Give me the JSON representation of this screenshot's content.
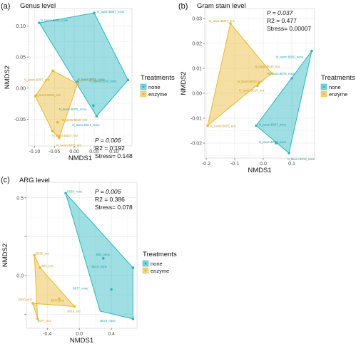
{
  "chart_data": [
    {
      "type": "scatter",
      "panel_label": "(a)",
      "title": "Genus level",
      "xlabel": "NMDS1",
      "ylabel": "NMDS2",
      "xlim": [
        -0.115,
        0.145
      ],
      "ylim": [
        -0.093,
        0.128
      ],
      "xticks": [
        -0.1,
        -0.05,
        0.0,
        0.05,
        0.1
      ],
      "xtick_labels": [
        "-0.10",
        "-0.05",
        "0.00",
        "0.05",
        "0.10"
      ],
      "yticks": [
        -0.05,
        0.0,
        0.05,
        0.1
      ],
      "ytick_labels": [
        "-0.05",
        "0.00",
        "0.05",
        "0.10"
      ],
      "grid": true,
      "legend_title": "Treatments",
      "legend_position": "right",
      "stats": {
        "p": "P = 0.006",
        "r2": "R2 = 0.192",
        "stress": "Stress= 0.148"
      },
      "series": [
        {
          "name": "none",
          "color": "#2BB5C2",
          "hull": [
            [
              -0.088,
              0.105
            ],
            [
              0.05,
              0.121
            ],
            [
              0.135,
              0.013
            ],
            [
              0.056,
              -0.045
            ]
          ],
          "points": [
            {
              "label": "N_taxon.B003_none",
              "x": -0.088,
              "y": 0.105
            },
            {
              "label": "N_taxon.B007_none",
              "x": 0.05,
              "y": 0.121
            },
            {
              "label": "N_taxon.B030_none",
              "x": 0.135,
              "y": 0.013
            },
            {
              "label": "N_taxon.B075_none",
              "x": 0.048,
              "y": -0.028
            },
            {
              "label": "N_taxon.B019_none",
              "x": 0.056,
              "y": -0.045
            },
            {
              "label": "N_taxon.B010_none",
              "x": 0.008,
              "y": 0.01
            }
          ]
        },
        {
          "name": "enzyme",
          "color": "#E8B830",
          "hull": [
            [
              -0.098,
              -0.013
            ],
            [
              -0.054,
              0.028
            ],
            [
              0.008,
              0.007
            ],
            [
              -0.038,
              -0.08
            ],
            [
              -0.055,
              -0.069
            ]
          ],
          "points": [
            {
              "label": "N_taxon.B003_enz",
              "x": -0.098,
              "y": -0.013
            },
            {
              "label": "N_taxon.B007_enz",
              "x": -0.054,
              "y": 0.028
            },
            {
              "label": "N_taxon.B030_enz",
              "x": 0.008,
              "y": 0.007
            },
            {
              "label": "N_taxon.B019_enz",
              "x": -0.042,
              "y": -0.055
            },
            {
              "label": "N_taxon.B010_enz",
              "x": -0.055,
              "y": -0.069
            },
            {
              "label": "N_taxon.B075_enz",
              "x": -0.038,
              "y": -0.08
            }
          ]
        }
      ],
      "legend": [
        {
          "name": "none"
        },
        {
          "name": "enzyme"
        }
      ]
    },
    {
      "type": "scatter",
      "panel_label": "(b)",
      "title": "Gram stain level",
      "xlabel": "NMDS1",
      "ylabel": "NMDS2",
      "xlim": [
        -0.205,
        0.18
      ],
      "ylim": [
        -0.026,
        0.034
      ],
      "xticks": [
        -0.2,
        -0.1,
        0.0,
        0.1
      ],
      "xtick_labels": [
        "-0.2",
        "-0.1",
        "0.0",
        "0.1"
      ],
      "yticks": [
        -0.02,
        -0.01,
        0.0,
        0.01,
        0.02,
        0.03
      ],
      "ytick_labels": [
        "-0.02",
        "-0.01",
        "0.00",
        "0.01",
        "0.02",
        "0.03"
      ],
      "grid": true,
      "legend_title": "Treatments",
      "legend_position": "right",
      "stats": {
        "p": "P = 0.037",
        "r2": "R2 = 0.477",
        "stress": "Stress= 0.00007"
      },
      "series": [
        {
          "name": "none",
          "color": "#2BB5C2",
          "hull": [
            [
              -0.025,
              -0.013
            ],
            [
              0.17,
              0.017
            ],
            [
              0.09,
              -0.024
            ]
          ],
          "points": [
            {
              "label": "N_taxon.B030_none",
              "x": 0.17,
              "y": 0.017
            },
            {
              "label": "N_taxon.B075_none",
              "x": 0.1,
              "y": 0.006
            },
            {
              "label": "N_taxon.B007_none",
              "x": -0.025,
              "y": -0.013
            },
            {
              "label": "N_taxon.B003_none",
              "x": 0.045,
              "y": -0.02
            },
            {
              "label": "N_taxon.B019_none",
              "x": 0.09,
              "y": -0.024
            }
          ]
        },
        {
          "name": "enzyme",
          "color": "#E8B830",
          "hull": [
            [
              -0.195,
              -0.013
            ],
            [
              -0.115,
              0.028
            ],
            [
              0.03,
              0.008
            ],
            [
              -0.015,
              0.004
            ]
          ],
          "points": [
            {
              "label": "N_taxon.B007_enz",
              "x": -0.115,
              "y": 0.028
            },
            {
              "label": "N_taxon.B030_enz",
              "x": 0.03,
              "y": 0.008
            },
            {
              "label": "N_taxon.B019_enz",
              "x": -0.015,
              "y": 0.004
            },
            {
              "label": "N_taxon.B010_enz",
              "x": -0.02,
              "y": 0.003
            },
            {
              "label": "N_taxon.B003_enz",
              "x": -0.195,
              "y": -0.013
            }
          ]
        }
      ],
      "legend": [
        {
          "name": "none"
        },
        {
          "name": "enzyme"
        }
      ]
    },
    {
      "type": "scatter",
      "panel_label": "(c)",
      "title": "ARG level",
      "xlabel": "NMDS1",
      "ylabel": "NMDS2",
      "xlim": [
        -0.66,
        0.72
      ],
      "ylim": [
        -0.34,
        0.6
      ],
      "xticks": [
        -0.4,
        0.0,
        0.4
      ],
      "xtick_labels": [
        "-0.4",
        "0.0",
        "0.4"
      ],
      "yticks": [
        -0.25,
        0.0,
        0.25,
        0.5
      ],
      "ytick_labels": [
        "",
        "0.0",
        "",
        "0.5"
      ],
      "grid": true,
      "legend_title": "Treatments",
      "legend_position": "right",
      "stats": {
        "p": "P = 0.006",
        "r2": "R2 = 0.386",
        "stress": "Stress= 0.078"
      },
      "series": [
        {
          "name": "none",
          "color": "#2BB5C2",
          "hull": [
            [
              -0.17,
              0.53
            ],
            [
              0.67,
              0.05
            ],
            [
              0.67,
              -0.28
            ],
            [
              0.26,
              -0.23
            ]
          ],
          "points": [
            {
              "label": "B035_none",
              "x": -0.17,
              "y": 0.53
            },
            {
              "label": "B03_none",
              "x": 0.3,
              "y": 0.11
            },
            {
              "label": "B010_none",
              "x": 0.67,
              "y": 0.05
            },
            {
              "label": "B077_none",
              "x": 0.4,
              "y": -0.09
            },
            {
              "label": "B070_none",
              "x": 0.67,
              "y": -0.28
            }
          ]
        },
        {
          "name": "enzyme",
          "color": "#E8B830",
          "hull": [
            [
              -0.56,
              0.13
            ],
            [
              -0.49,
              0.05
            ],
            [
              -0.06,
              -0.2
            ],
            [
              -0.58,
              -0.18
            ],
            [
              -0.52,
              -0.28
            ]
          ],
          "points": [
            {
              "label": "B035_enz",
              "x": -0.56,
              "y": 0.13
            },
            {
              "label": "B03_enz",
              "x": -0.49,
              "y": 0.05
            },
            {
              "label": "B010_enz",
              "x": -0.58,
              "y": -0.18
            },
            {
              "label": "B070_enz",
              "x": -0.25,
              "y": -0.15
            },
            {
              "label": "B077_enz",
              "x": -0.52,
              "y": -0.28
            },
            {
              "label": "B019_enz",
              "x": -0.06,
              "y": -0.2
            }
          ]
        }
      ],
      "legend": [
        {
          "name": "none"
        },
        {
          "name": "enzyme"
        }
      ]
    }
  ]
}
